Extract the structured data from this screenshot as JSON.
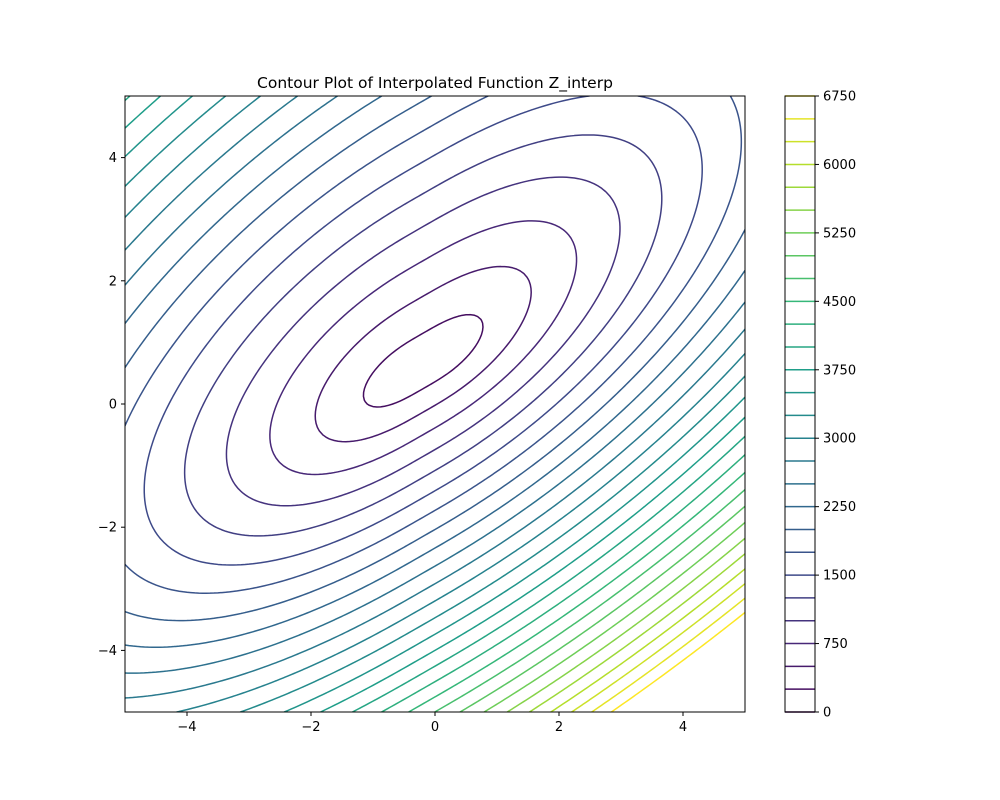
{
  "chart_data": {
    "type": "contour",
    "title": "Contour Plot of Interpolated Function Z_interp",
    "xlabel": "",
    "ylabel": "",
    "xlim": [
      -5,
      5
    ],
    "ylim": [
      -5,
      5
    ],
    "x_ticks": [
      {
        "value": -4,
        "label": "−4"
      },
      {
        "value": -2,
        "label": "−2"
      },
      {
        "value": 0,
        "label": "0"
      },
      {
        "value": 2,
        "label": "2"
      },
      {
        "value": 4,
        "label": "4"
      }
    ],
    "y_ticks": [
      {
        "value": -4,
        "label": "−4"
      },
      {
        "value": -2,
        "label": "−2"
      },
      {
        "value": 0,
        "label": "0"
      },
      {
        "value": 2,
        "label": "2"
      },
      {
        "value": 4,
        "label": "4"
      }
    ],
    "grid": false,
    "colormap": "viridis",
    "contour_levels": [
      0,
      250,
      500,
      750,
      1000,
      1250,
      1500,
      1750,
      2000,
      2250,
      2500,
      2750,
      3000,
      3250,
      3500,
      3750,
      4000,
      4250,
      4500,
      4750,
      5000,
      5250,
      5500,
      5750,
      6000,
      6250,
      6500,
      6750
    ],
    "colorbar": {
      "range": [
        0,
        6750
      ],
      "ticks": [
        {
          "value": 0,
          "label": "0"
        },
        {
          "value": 750,
          "label": "750"
        },
        {
          "value": 1500,
          "label": "1500"
        },
        {
          "value": 2250,
          "label": "2250"
        },
        {
          "value": 3000,
          "label": "3000"
        },
        {
          "value": 3750,
          "label": "3750"
        },
        {
          "value": 4500,
          "label": "4500"
        },
        {
          "value": 5250,
          "label": "5250"
        },
        {
          "value": 6000,
          "label": "6000"
        },
        {
          "value": 6750,
          "label": "6750"
        }
      ]
    }
  }
}
